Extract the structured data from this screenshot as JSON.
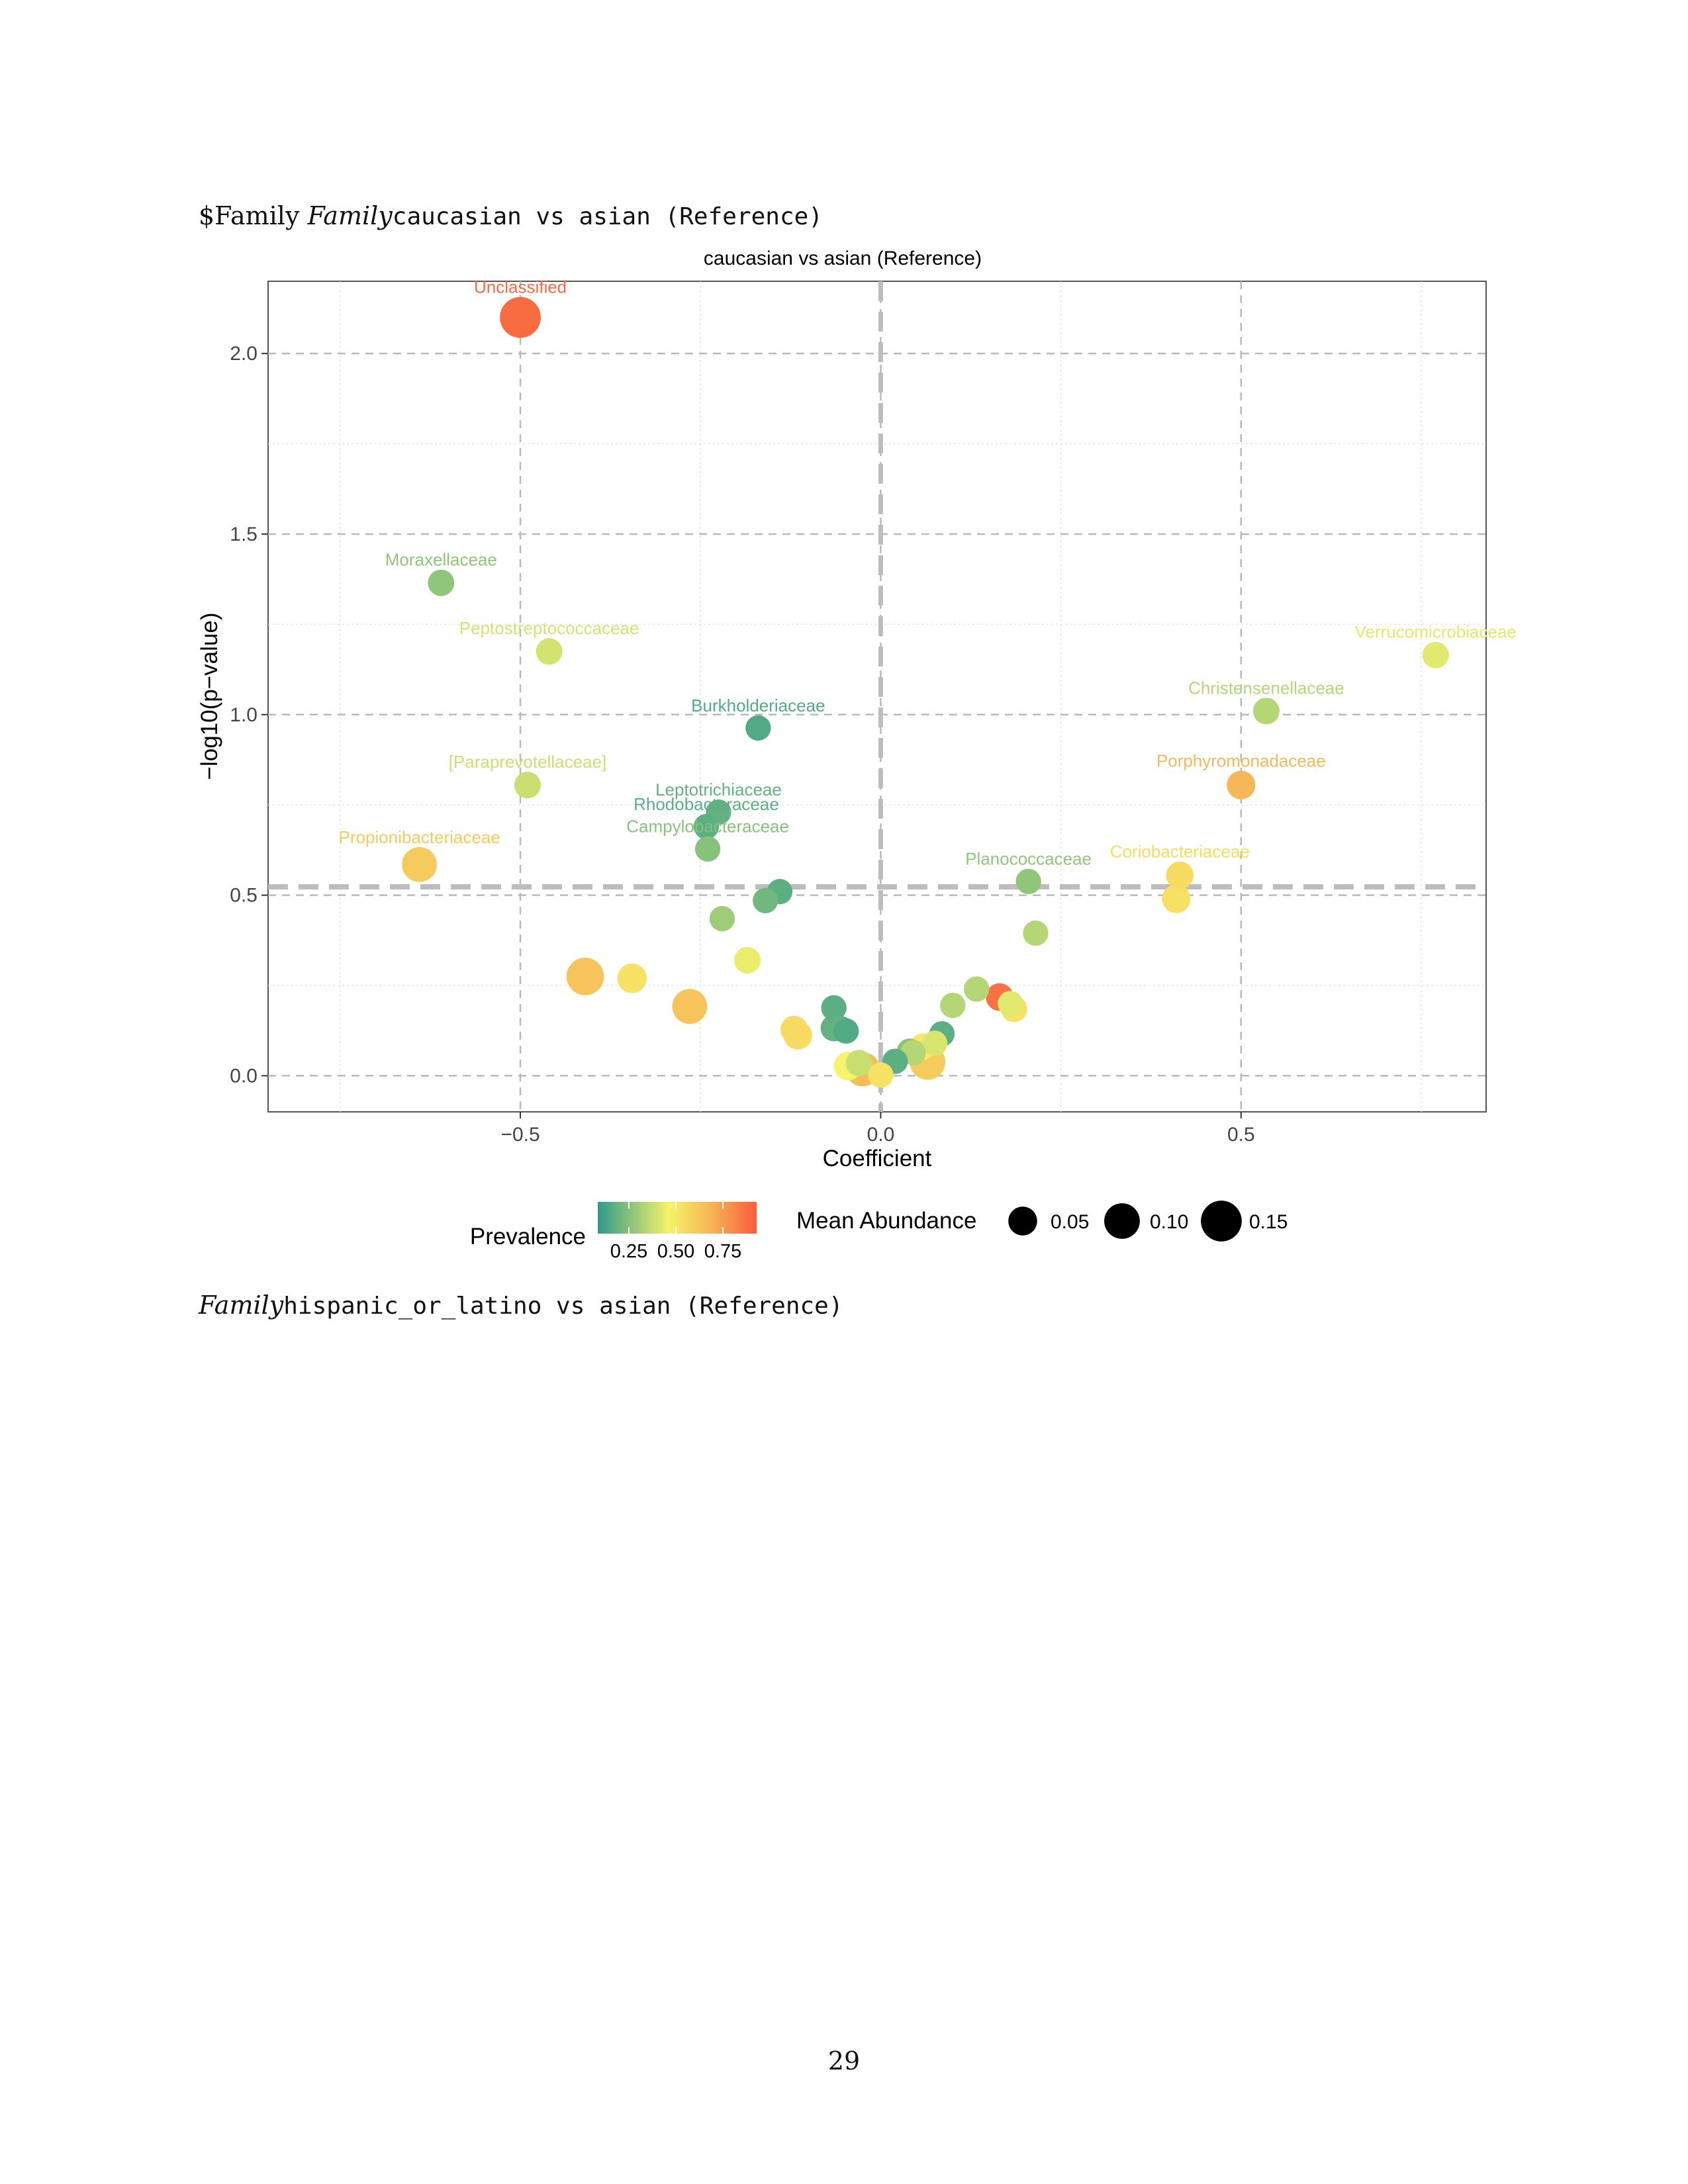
{
  "section_heading": {
    "prefix": "$Family ",
    "italic": "Family",
    "mono": "caucasian vs asian (Reference)"
  },
  "next_heading": {
    "italic": "Family",
    "mono": "hispanic_or_latino vs asian (Reference)"
  },
  "page_number": "29",
  "chart_data": {
    "type": "scatter",
    "title": "caucasian vs asian (Reference)",
    "xlabel": "Coefficient",
    "ylabel": "−log10(p−value)",
    "xlim": [
      -0.85,
      0.84
    ],
    "ylim": [
      -0.1,
      2.2
    ],
    "x_ticks": [
      -0.5,
      0.0,
      0.5
    ],
    "x_tick_labels": [
      "−0.5",
      "0.0",
      "0.5"
    ],
    "y_ticks": [
      0.0,
      0.5,
      1.0,
      1.5,
      2.0
    ],
    "y_tick_labels": [
      "0.0",
      "0.5",
      "1.0",
      "1.5",
      "2.0"
    ],
    "grid": true,
    "vline_x": 0.0,
    "hline_y": 0.523,
    "legend": {
      "position": "bottom",
      "color_title": "Prevalence",
      "color_tick_labels": [
        "0.25",
        "0.50",
        "0.75"
      ],
      "size_title": "Mean Abundance",
      "size_labels": [
        "0.05",
        "0.10",
        "0.15"
      ],
      "size_values": [
        0.05,
        0.1,
        0.15
      ]
    },
    "colors": {
      "low": "#2e9b8a",
      "mid": "#f7f36a",
      "mid_high": "#f6b355",
      "high": "#f95c3e"
    },
    "points": [
      {
        "x": -0.5,
        "y": 2.1,
        "prevalence": 0.95,
        "abundance": 0.13,
        "label": "Unclassified"
      },
      {
        "x": -0.61,
        "y": 1.365,
        "prevalence": 0.22,
        "abundance": 0.03,
        "label": "Moraxellaceae"
      },
      {
        "x": -0.46,
        "y": 1.175,
        "prevalence": 0.37,
        "abundance": 0.03,
        "label": "Peptostreptococcaceae"
      },
      {
        "x": 0.77,
        "y": 1.165,
        "prevalence": 0.4,
        "abundance": 0.03,
        "label": "Verrucomicrobiaceae"
      },
      {
        "x": -0.17,
        "y": 0.963,
        "prevalence": 0.08,
        "abundance": 0.025,
        "label": "Burkholderiaceae"
      },
      {
        "x": 0.535,
        "y": 1.01,
        "prevalence": 0.3,
        "abundance": 0.03,
        "label": "Christensenellaceae"
      },
      {
        "x": -0.49,
        "y": 0.805,
        "prevalence": 0.35,
        "abundance": 0.03,
        "label": "[Paraprevotellaceae]"
      },
      {
        "x": 0.5,
        "y": 0.805,
        "prevalence": 0.7,
        "abundance": 0.04,
        "label": "Porphyromonadaceae"
      },
      {
        "x": -0.225,
        "y": 0.73,
        "prevalence": 0.12,
        "abundance": 0.025,
        "label": "Leptotrichiaceae"
      },
      {
        "x": -0.242,
        "y": 0.69,
        "prevalence": 0.1,
        "abundance": 0.025,
        "label": "Rhodobacteraceae"
      },
      {
        "x": -0.24,
        "y": 0.628,
        "prevalence": 0.2,
        "abundance": 0.025,
        "label": "Campylobacteraceae"
      },
      {
        "x": -0.64,
        "y": 0.585,
        "prevalence": 0.62,
        "abundance": 0.08,
        "label": "Propionibacteriaceae"
      },
      {
        "x": 0.205,
        "y": 0.538,
        "prevalence": 0.22,
        "abundance": 0.025,
        "label": "Planococcaceae"
      },
      {
        "x": 0.415,
        "y": 0.555,
        "prevalence": 0.55,
        "abundance": 0.035,
        "label": "Coriobacteriaceae"
      },
      {
        "x": 0.41,
        "y": 0.49,
        "prevalence": 0.53,
        "abundance": 0.04
      },
      {
        "x": -0.14,
        "y": 0.51,
        "prevalence": 0.1,
        "abundance": 0.025
      },
      {
        "x": -0.16,
        "y": 0.485,
        "prevalence": 0.15,
        "abundance": 0.025
      },
      {
        "x": -0.22,
        "y": 0.435,
        "prevalence": 0.25,
        "abundance": 0.025
      },
      {
        "x": 0.215,
        "y": 0.395,
        "prevalence": 0.3,
        "abundance": 0.025
      },
      {
        "x": -0.185,
        "y": 0.32,
        "prevalence": 0.42,
        "abundance": 0.03
      },
      {
        "x": -0.41,
        "y": 0.275,
        "prevalence": 0.65,
        "abundance": 0.1
      },
      {
        "x": -0.345,
        "y": 0.27,
        "prevalence": 0.52,
        "abundance": 0.045
      },
      {
        "x": -0.265,
        "y": 0.192,
        "prevalence": 0.65,
        "abundance": 0.08
      },
      {
        "x": 0.133,
        "y": 0.24,
        "prevalence": 0.3,
        "abundance": 0.025
      },
      {
        "x": 0.1,
        "y": 0.195,
        "prevalence": 0.3,
        "abundance": 0.025
      },
      {
        "x": 0.165,
        "y": 0.218,
        "prevalence": 0.93,
        "abundance": 0.035
      },
      {
        "x": 0.18,
        "y": 0.2,
        "prevalence": 0.4,
        "abundance": 0.025
      },
      {
        "x": 0.185,
        "y": 0.185,
        "prevalence": 0.52,
        "abundance": 0.03
      },
      {
        "x": -0.065,
        "y": 0.188,
        "prevalence": 0.1,
        "abundance": 0.025
      },
      {
        "x": -0.12,
        "y": 0.128,
        "prevalence": 0.55,
        "abundance": 0.035
      },
      {
        "x": -0.115,
        "y": 0.112,
        "prevalence": 0.55,
        "abundance": 0.04
      },
      {
        "x": -0.065,
        "y": 0.132,
        "prevalence": 0.12,
        "abundance": 0.03
      },
      {
        "x": -0.055,
        "y": 0.13,
        "prevalence": 0.12,
        "abundance": 0.025
      },
      {
        "x": -0.048,
        "y": 0.124,
        "prevalence": 0.08,
        "abundance": 0.025
      },
      {
        "x": 0.085,
        "y": 0.116,
        "prevalence": 0.1,
        "abundance": 0.025
      },
      {
        "x": 0.075,
        "y": 0.09,
        "prevalence": 0.38,
        "abundance": 0.025
      },
      {
        "x": 0.058,
        "y": 0.08,
        "prevalence": 0.5,
        "abundance": 0.03
      },
      {
        "x": 0.04,
        "y": 0.068,
        "prevalence": 0.2,
        "abundance": 0.025
      },
      {
        "x": 0.045,
        "y": 0.064,
        "prevalence": 0.3,
        "abundance": 0.025
      },
      {
        "x": 0.02,
        "y": 0.04,
        "prevalence": 0.1,
        "abundance": 0.025
      },
      {
        "x": -0.03,
        "y": 0.035,
        "prevalence": 0.35,
        "abundance": 0.03
      },
      {
        "x": -0.045,
        "y": 0.027,
        "prevalence": 0.45,
        "abundance": 0.04
      },
      {
        "x": 0.065,
        "y": 0.038,
        "prevalence": 0.62,
        "abundance": 0.085
      },
      {
        "x": -0.025,
        "y": 0.018,
        "prevalence": 0.68,
        "abundance": 0.075
      },
      {
        "x": 0.0,
        "y": 0.002,
        "prevalence": 0.52,
        "abundance": 0.025
      }
    ]
  }
}
